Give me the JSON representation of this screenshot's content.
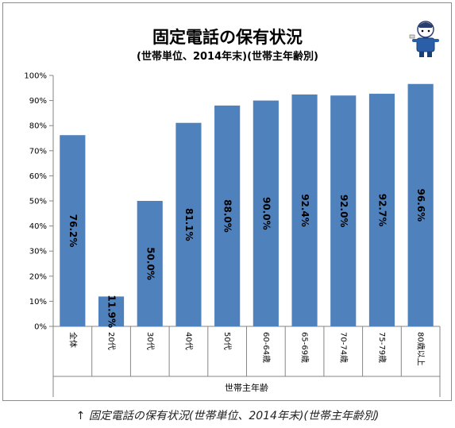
{
  "chart_data": {
    "type": "bar",
    "title": "固定電話の保有状況",
    "subtitle": "(世帯単位、2014年末)(世帯主年齢別)",
    "xlabel": "世帯主年齢",
    "ylabel": "",
    "categories": [
      "全体",
      "20代",
      "30代",
      "40代",
      "50代",
      "60-64歳",
      "65-69歳",
      "70-74歳",
      "75-79歳",
      "80歳以上"
    ],
    "values": [
      76.2,
      11.9,
      50.0,
      81.1,
      88.0,
      90.0,
      92.4,
      92.0,
      92.7,
      96.6
    ],
    "data_labels": [
      "76.2%",
      "11.9%",
      "50.0%",
      "81.1%",
      "88.0%",
      "90.0%",
      "92.4%",
      "92.0%",
      "92.7%",
      "96.6%"
    ],
    "y_ticks": [
      "0%",
      "10%",
      "20%",
      "30%",
      "40%",
      "50%",
      "60%",
      "70%",
      "80%",
      "90%",
      "100%"
    ],
    "ylim": [
      0,
      100
    ],
    "grid": false,
    "legend": "none",
    "bar_color": "#4f81bd"
  },
  "caption": "↑ 固定電話の保有状況(世帯単位、2014年末)(世帯主年齢別)",
  "mascot_icon": "mascot-icon"
}
